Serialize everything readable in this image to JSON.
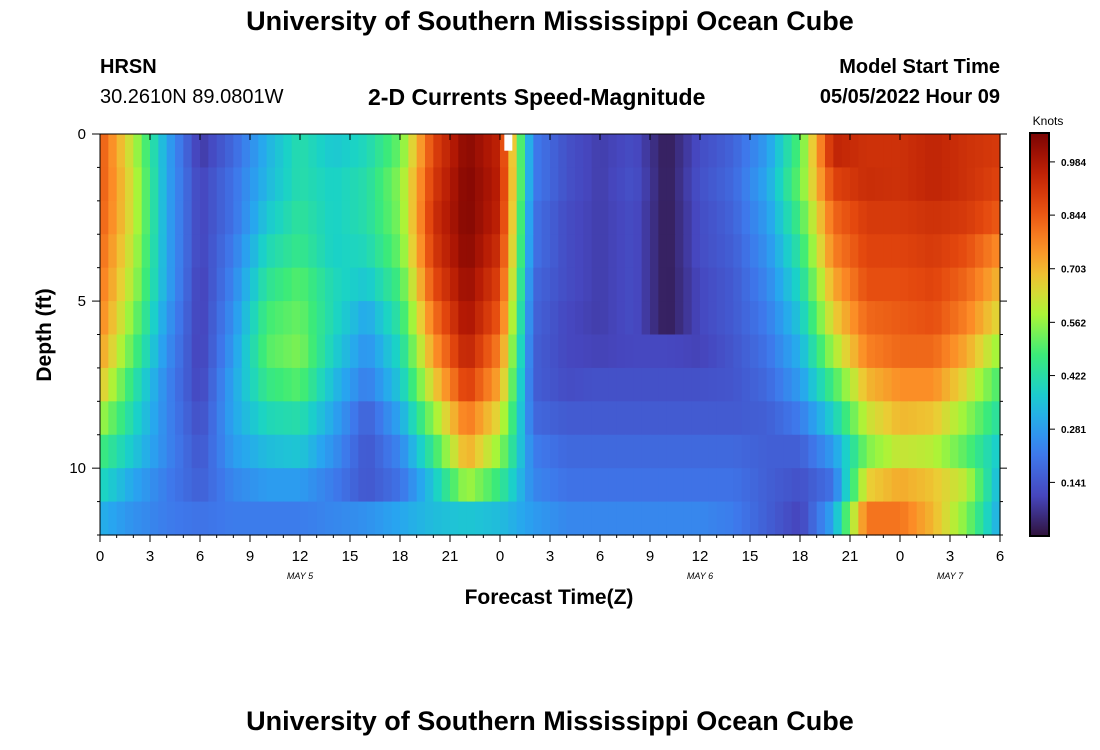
{
  "page": {
    "title": "University of Southern Mississippi Ocean Cube",
    "footer_title": "University of Southern Mississippi Ocean Cube",
    "station": "HRSN",
    "coords": "30.2610N  89.0801W",
    "subtitle": "2-D Currents Speed-Magnitude",
    "start_label": "Model Start Time",
    "start_time": "05/05/2022 Hour 09"
  },
  "chart_data": {
    "type": "heatmap",
    "title": "2-D Currents Speed-Magnitude",
    "xlabel": "Forecast Time(Z)",
    "ylabel": "Depth (ft)",
    "x_range_hours": [
      0,
      54
    ],
    "x_tick_labels": [
      "0",
      "3",
      "6",
      "9",
      "12",
      "15",
      "18",
      "21",
      "0",
      "3",
      "6",
      "9",
      "12",
      "15",
      "18",
      "21",
      "0",
      "3",
      "6"
    ],
    "date_labels": [
      {
        "text": "MAY 5",
        "hour": 12
      },
      {
        "text": "MAY 6",
        "hour": 36
      },
      {
        "text": "MAY 7",
        "hour": 51
      }
    ],
    "y_range_ft": [
      0,
      12
    ],
    "y_tick_labels": [
      {
        "text": "0",
        "value": 0
      },
      {
        "text": "5",
        "value": 5
      },
      {
        "text": "10",
        "value": 10
      }
    ],
    "colorbar": {
      "unit": "Knots",
      "min": 0.0,
      "max": 1.06,
      "tick_labels": [
        "0.984",
        "0.844",
        "0.703",
        "0.562",
        "0.422",
        "0.281",
        "0.141"
      ]
    },
    "depth_levels_ft": [
      0.5,
      1.5,
      2.5,
      3.5,
      4.5,
      5.5,
      6.5,
      7.5,
      8.5,
      9.5,
      10.5,
      11.5
    ],
    "time_hours": [
      0,
      2,
      4,
      6,
      8,
      10,
      12,
      14,
      16,
      18,
      20,
      22,
      24,
      26,
      28,
      30,
      32,
      34,
      36,
      38,
      40,
      42,
      44,
      46,
      48,
      50,
      52,
      54
    ],
    "speed_knots": [
      [
        0.85,
        0.6,
        0.3,
        0.08,
        0.18,
        0.32,
        0.42,
        0.36,
        0.4,
        0.52,
        0.88,
        1.04,
        0.95,
        0.22,
        0.13,
        0.09,
        0.12,
        0.02,
        0.12,
        0.17,
        0.28,
        0.5,
        0.95,
        0.92,
        0.92,
        0.95,
        0.92,
        0.9
      ],
      [
        0.85,
        0.62,
        0.3,
        0.1,
        0.2,
        0.33,
        0.42,
        0.38,
        0.42,
        0.55,
        0.9,
        1.05,
        0.96,
        0.22,
        0.13,
        0.09,
        0.13,
        0.02,
        0.13,
        0.18,
        0.3,
        0.52,
        0.88,
        0.93,
        0.92,
        0.95,
        0.92,
        0.88
      ],
      [
        0.84,
        0.62,
        0.3,
        0.1,
        0.2,
        0.36,
        0.44,
        0.38,
        0.42,
        0.54,
        0.92,
        1.05,
        0.95,
        0.2,
        0.12,
        0.09,
        0.12,
        0.02,
        0.12,
        0.17,
        0.28,
        0.48,
        0.82,
        0.9,
        0.9,
        0.92,
        0.9,
        0.84
      ],
      [
        0.82,
        0.6,
        0.3,
        0.1,
        0.22,
        0.4,
        0.46,
        0.38,
        0.4,
        0.52,
        0.9,
        1.04,
        0.92,
        0.2,
        0.12,
        0.09,
        0.12,
        0.02,
        0.12,
        0.16,
        0.26,
        0.44,
        0.78,
        0.88,
        0.88,
        0.9,
        0.86,
        0.76
      ],
      [
        0.8,
        0.58,
        0.3,
        0.09,
        0.24,
        0.44,
        0.5,
        0.4,
        0.36,
        0.48,
        0.86,
        1.02,
        0.88,
        0.18,
        0.12,
        0.09,
        0.12,
        0.02,
        0.11,
        0.15,
        0.24,
        0.4,
        0.72,
        0.86,
        0.86,
        0.88,
        0.82,
        0.7
      ],
      [
        0.78,
        0.54,
        0.28,
        0.09,
        0.26,
        0.48,
        0.52,
        0.4,
        0.3,
        0.44,
        0.8,
        1.0,
        0.84,
        0.17,
        0.11,
        0.09,
        0.12,
        0.02,
        0.11,
        0.15,
        0.22,
        0.36,
        0.66,
        0.82,
        0.84,
        0.86,
        0.78,
        0.64
      ],
      [
        0.74,
        0.5,
        0.26,
        0.09,
        0.28,
        0.5,
        0.54,
        0.38,
        0.26,
        0.4,
        0.74,
        0.96,
        0.78,
        0.16,
        0.11,
        0.1,
        0.11,
        0.11,
        0.1,
        0.14,
        0.2,
        0.32,
        0.58,
        0.78,
        0.82,
        0.82,
        0.72,
        0.56
      ],
      [
        0.68,
        0.44,
        0.24,
        0.1,
        0.3,
        0.46,
        0.5,
        0.34,
        0.22,
        0.36,
        0.66,
        0.9,
        0.72,
        0.16,
        0.12,
        0.13,
        0.13,
        0.13,
        0.13,
        0.14,
        0.18,
        0.28,
        0.48,
        0.7,
        0.76,
        0.76,
        0.64,
        0.48
      ],
      [
        0.58,
        0.4,
        0.24,
        0.12,
        0.3,
        0.4,
        0.42,
        0.3,
        0.16,
        0.3,
        0.56,
        0.8,
        0.64,
        0.18,
        0.15,
        0.15,
        0.15,
        0.15,
        0.15,
        0.15,
        0.16,
        0.22,
        0.38,
        0.62,
        0.7,
        0.68,
        0.56,
        0.42
      ],
      [
        0.48,
        0.36,
        0.24,
        0.14,
        0.28,
        0.34,
        0.36,
        0.26,
        0.14,
        0.24,
        0.46,
        0.72,
        0.56,
        0.22,
        0.18,
        0.18,
        0.18,
        0.18,
        0.18,
        0.18,
        0.16,
        0.16,
        0.28,
        0.54,
        0.62,
        0.6,
        0.5,
        0.36
      ],
      [
        0.4,
        0.3,
        0.22,
        0.16,
        0.24,
        0.28,
        0.28,
        0.22,
        0.14,
        0.2,
        0.36,
        0.58,
        0.46,
        0.24,
        0.2,
        0.2,
        0.2,
        0.2,
        0.2,
        0.2,
        0.16,
        0.13,
        0.2,
        0.66,
        0.72,
        0.68,
        0.6,
        0.32
      ],
      [
        0.32,
        0.26,
        0.22,
        0.2,
        0.22,
        0.22,
        0.22,
        0.24,
        0.26,
        0.3,
        0.34,
        0.36,
        0.34,
        0.28,
        0.24,
        0.24,
        0.24,
        0.24,
        0.24,
        0.22,
        0.16,
        0.1,
        0.3,
        0.8,
        0.8,
        0.7,
        0.54,
        0.3
      ]
    ],
    "missing_cell": {
      "hour": 24.5,
      "depth_ft": 0.25
    }
  }
}
